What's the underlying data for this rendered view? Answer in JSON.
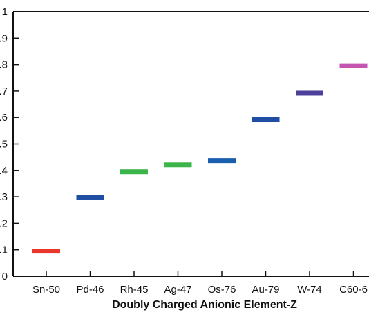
{
  "chart_data": {
    "type": "bar",
    "title": "",
    "xlabel": "Doubly Charged Anionic Element-Z",
    "ylabel": "",
    "categories": [
      "Sn-50",
      "Pd-46",
      "Rh-45",
      "Ag-47",
      "Os-76",
      "Au-79",
      "W-74",
      "C60-6"
    ],
    "values": [
      0.095,
      0.297,
      0.395,
      0.421,
      0.437,
      0.592,
      0.692,
      0.796
    ],
    "colors": [
      "#e8382c",
      "#1f4ea3",
      "#3bb54a",
      "#3bb54a",
      "#1a5fae",
      "#1f4ea3",
      "#4b3f9c",
      "#c355b0"
    ],
    "ylim": [
      0,
      1
    ],
    "yticks": [
      0,
      0.1,
      0.2,
      0.3,
      0.4,
      0.5,
      0.6,
      0.7,
      0.8,
      0.9,
      1
    ],
    "ytick_labels": [
      "0",
      ".1",
      ".2",
      ".3",
      ".4",
      ".5",
      ".6",
      ".7",
      ".8",
      ".9",
      "1"
    ],
    "grid": false,
    "legend": "none"
  }
}
